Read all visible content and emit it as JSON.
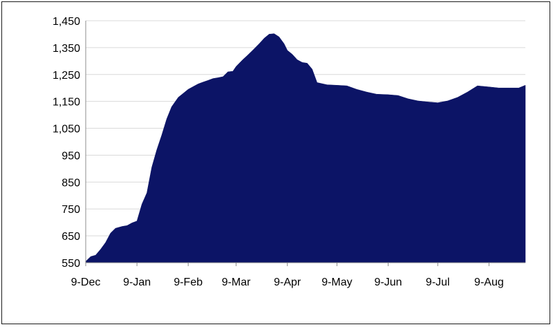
{
  "chart_data": {
    "type": "area",
    "title": "",
    "xlabel": "",
    "ylabel": "",
    "ylim": [
      550,
      1450
    ],
    "yticks": [
      550,
      650,
      750,
      850,
      950,
      1050,
      1150,
      1250,
      1350,
      1450
    ],
    "ytick_labels": [
      "550",
      "650",
      "750",
      "850",
      "950",
      "1,050",
      "1,150",
      "1,250",
      "1,350",
      "1,450"
    ],
    "xlim": [
      "2023-12-09",
      "2024-08-31"
    ],
    "xticks": [
      "2023-12-09",
      "2024-01-09",
      "2024-02-09",
      "2024-03-09",
      "2024-04-09",
      "2024-05-09",
      "2024-06-09",
      "2024-07-09",
      "2024-08-09"
    ],
    "xtick_labels": [
      "9-Dec",
      "9-Jan",
      "9-Feb",
      "9-Mar",
      "9-Apr",
      "9-May",
      "9-Jun",
      "9-Jul",
      "9-Aug"
    ],
    "grid": true,
    "legend": "none",
    "colors": {
      "fill": "#0c1466",
      "grid": "#d9d9d9",
      "axis": "#8c8c8c"
    },
    "series": [
      {
        "x": [
          "2023-12-09",
          "2023-12-12",
          "2023-12-15",
          "2023-12-18",
          "2023-12-21",
          "2023-12-24",
          "2023-12-27",
          "2023-12-31",
          "2024-01-03",
          "2024-01-06",
          "2024-01-09",
          "2024-01-12",
          "2024-01-15",
          "2024-01-18",
          "2024-01-21",
          "2024-01-24",
          "2024-01-27",
          "2024-01-30",
          "2024-02-03",
          "2024-02-06",
          "2024-02-09",
          "2024-02-12",
          "2024-02-15",
          "2024-02-18",
          "2024-02-21",
          "2024-02-24",
          "2024-02-27",
          "2024-03-01",
          "2024-03-04",
          "2024-03-07",
          "2024-03-09",
          "2024-03-13",
          "2024-03-16",
          "2024-03-19",
          "2024-03-23",
          "2024-03-26",
          "2024-03-29",
          "2024-04-01",
          "2024-04-04",
          "2024-04-07",
          "2024-04-09",
          "2024-04-12",
          "2024-04-15",
          "2024-04-18",
          "2024-04-21",
          "2024-04-24",
          "2024-04-27",
          "2024-04-30",
          "2024-05-03",
          "2024-05-09",
          "2024-05-15",
          "2024-05-21",
          "2024-05-27",
          "2024-06-02",
          "2024-06-09",
          "2024-06-15",
          "2024-06-21",
          "2024-06-27",
          "2024-07-03",
          "2024-07-09",
          "2024-07-15",
          "2024-07-21",
          "2024-07-27",
          "2024-08-02",
          "2024-08-09",
          "2024-08-15",
          "2024-08-21",
          "2024-08-27",
          "2024-08-31"
        ],
        "values": [
          555,
          573,
          578,
          600,
          625,
          660,
          678,
          685,
          688,
          698,
          705,
          768,
          810,
          905,
          970,
          1025,
          1085,
          1130,
          1165,
          1180,
          1195,
          1205,
          1215,
          1222,
          1228,
          1235,
          1238,
          1242,
          1260,
          1262,
          1280,
          1305,
          1322,
          1340,
          1365,
          1385,
          1400,
          1402,
          1390,
          1365,
          1340,
          1325,
          1305,
          1295,
          1292,
          1270,
          1220,
          1216,
          1212,
          1210,
          1208,
          1195,
          1185,
          1177,
          1175,
          1172,
          1160,
          1152,
          1148,
          1145,
          1152,
          1165,
          1185,
          1208,
          1204,
          1200,
          1200,
          1200,
          1210
        ]
      }
    ]
  }
}
